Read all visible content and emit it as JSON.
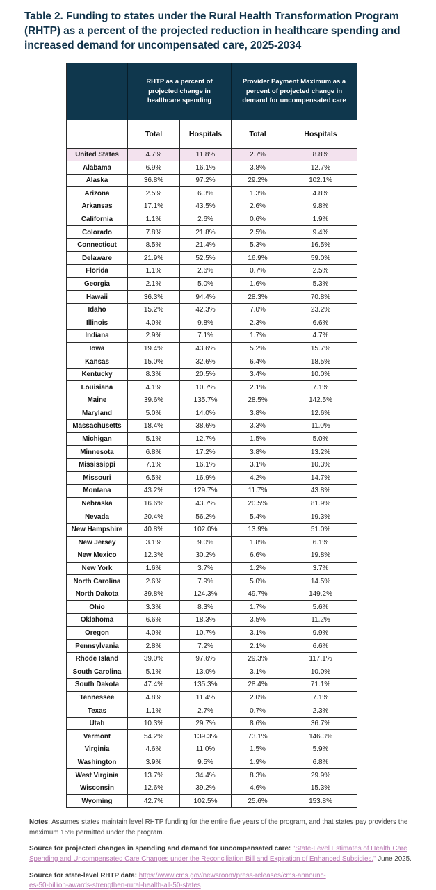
{
  "page_title": "Table 2. Funding to states under the Rural Health Transformation Program (RHTP) as a percent of the projected reduction in healthcare spending and increased demand for uncompensated care, 2025-2034",
  "colors": {
    "header_navy": "#0f374d",
    "highlight_pink": "#f3e2ee",
    "link_purple": "#b778b1",
    "title_navy": "#12344b",
    "border": "#2b2b2b"
  },
  "chart_data": {
    "type": "table",
    "title": "Table 2. Funding to states under the Rural Health Transformation Program (RHTP) as a percent of the projected reduction in healthcare spending and increased demand for uncompensated care, 2025-2034",
    "column_groups": [
      "RHTP as a percent of projected change in healthcare spending",
      "Provider Payment Maximum as a percent of projected change in demand for uncompensated care"
    ],
    "sub_headers": [
      "Total",
      "Hospitals",
      "Total",
      "Hospitals"
    ],
    "rows": [
      {
        "label": "United States",
        "values": [
          "4.7%",
          "11.8%",
          "2.7%",
          "8.8%"
        ],
        "highlight": true
      },
      {
        "label": "Alabama",
        "values": [
          "6.9%",
          "16.1%",
          "3.8%",
          "12.7%"
        ]
      },
      {
        "label": "Alaska",
        "values": [
          "36.8%",
          "97.2%",
          "29.2%",
          "102.1%"
        ]
      },
      {
        "label": "Arizona",
        "values": [
          "2.5%",
          "6.3%",
          "1.3%",
          "4.8%"
        ]
      },
      {
        "label": "Arkansas",
        "values": [
          "17.1%",
          "43.5%",
          "2.6%",
          "9.8%"
        ]
      },
      {
        "label": "California",
        "values": [
          "1.1%",
          "2.6%",
          "0.6%",
          "1.9%"
        ]
      },
      {
        "label": "Colorado",
        "values": [
          "7.8%",
          "21.8%",
          "2.5%",
          "9.4%"
        ]
      },
      {
        "label": "Connecticut",
        "values": [
          "8.5%",
          "21.4%",
          "5.3%",
          "16.5%"
        ]
      },
      {
        "label": "Delaware",
        "values": [
          "21.9%",
          "52.5%",
          "16.9%",
          "59.0%"
        ]
      },
      {
        "label": "Florida",
        "values": [
          "1.1%",
          "2.6%",
          "0.7%",
          "2.5%"
        ]
      },
      {
        "label": "Georgia",
        "values": [
          "2.1%",
          "5.0%",
          "1.6%",
          "5.3%"
        ]
      },
      {
        "label": "Hawaii",
        "values": [
          "36.3%",
          "94.4%",
          "28.3%",
          "70.8%"
        ]
      },
      {
        "label": "Idaho",
        "values": [
          "15.2%",
          "42.3%",
          "7.0%",
          "23.2%"
        ]
      },
      {
        "label": "Illinois",
        "values": [
          "4.0%",
          "9.8%",
          "2.3%",
          "6.6%"
        ]
      },
      {
        "label": "Indiana",
        "values": [
          "2.9%",
          "7.1%",
          "1.7%",
          "4.7%"
        ]
      },
      {
        "label": "Iowa",
        "values": [
          "19.4%",
          "43.6%",
          "5.2%",
          "15.7%"
        ]
      },
      {
        "label": "Kansas",
        "values": [
          "15.0%",
          "32.6%",
          "6.4%",
          "18.5%"
        ]
      },
      {
        "label": "Kentucky",
        "values": [
          "8.3%",
          "20.5%",
          "3.4%",
          "10.0%"
        ]
      },
      {
        "label": "Louisiana",
        "values": [
          "4.1%",
          "10.7%",
          "2.1%",
          "7.1%"
        ]
      },
      {
        "label": "Maine",
        "values": [
          "39.6%",
          "135.7%",
          "28.5%",
          "142.5%"
        ]
      },
      {
        "label": "Maryland",
        "values": [
          "5.0%",
          "14.0%",
          "3.8%",
          "12.6%"
        ]
      },
      {
        "label": "Massachusetts",
        "values": [
          "18.4%",
          "38.6%",
          "3.3%",
          "11.0%"
        ]
      },
      {
        "label": "Michigan",
        "values": [
          "5.1%",
          "12.7%",
          "1.5%",
          "5.0%"
        ]
      },
      {
        "label": "Minnesota",
        "values": [
          "6.8%",
          "17.2%",
          "3.8%",
          "13.2%"
        ]
      },
      {
        "label": "Mississippi",
        "values": [
          "7.1%",
          "16.1%",
          "3.1%",
          "10.3%"
        ]
      },
      {
        "label": "Missouri",
        "values": [
          "6.5%",
          "16.9%",
          "4.2%",
          "14.7%"
        ]
      },
      {
        "label": "Montana",
        "values": [
          "43.2%",
          "129.7%",
          "11.7%",
          "43.8%"
        ]
      },
      {
        "label": "Nebraska",
        "values": [
          "16.6%",
          "43.7%",
          "20.5%",
          "81.9%"
        ]
      },
      {
        "label": "Nevada",
        "values": [
          "20.4%",
          "56.2%",
          "5.4%",
          "19.3%"
        ]
      },
      {
        "label": "New Hampshire",
        "values": [
          "40.8%",
          "102.0%",
          "13.9%",
          "51.0%"
        ]
      },
      {
        "label": "New Jersey",
        "values": [
          "3.1%",
          "9.0%",
          "1.8%",
          "6.1%"
        ]
      },
      {
        "label": "New Mexico",
        "values": [
          "12.3%",
          "30.2%",
          "6.6%",
          "19.8%"
        ]
      },
      {
        "label": "New York",
        "values": [
          "1.6%",
          "3.7%",
          "1.2%",
          "3.7%"
        ]
      },
      {
        "label": "North Carolina",
        "values": [
          "2.6%",
          "7.9%",
          "5.0%",
          "14.5%"
        ]
      },
      {
        "label": "North Dakota",
        "values": [
          "39.8%",
          "124.3%",
          "49.7%",
          "149.2%"
        ]
      },
      {
        "label": "Ohio",
        "values": [
          "3.3%",
          "8.3%",
          "1.7%",
          "5.6%"
        ]
      },
      {
        "label": "Oklahoma",
        "values": [
          "6.6%",
          "18.3%",
          "3.5%",
          "11.2%"
        ]
      },
      {
        "label": "Oregon",
        "values": [
          "4.0%",
          "10.7%",
          "3.1%",
          "9.9%"
        ]
      },
      {
        "label": "Pennsylvania",
        "values": [
          "2.8%",
          "7.2%",
          "2.1%",
          "6.6%"
        ]
      },
      {
        "label": "Rhode Island",
        "values": [
          "39.0%",
          "97.6%",
          "29.3%",
          "117.1%"
        ]
      },
      {
        "label": "South Carolina",
        "values": [
          "5.1%",
          "13.0%",
          "3.1%",
          "10.0%"
        ]
      },
      {
        "label": "South Dakota",
        "values": [
          "47.4%",
          "135.3%",
          "28.4%",
          "71.1%"
        ]
      },
      {
        "label": "Tennessee",
        "values": [
          "4.8%",
          "11.4%",
          "2.0%",
          "7.1%"
        ]
      },
      {
        "label": "Texas",
        "values": [
          "1.1%",
          "2.7%",
          "0.7%",
          "2.3%"
        ]
      },
      {
        "label": "Utah",
        "values": [
          "10.3%",
          "29.7%",
          "8.6%",
          "36.7%"
        ]
      },
      {
        "label": "Vermont",
        "values": [
          "54.2%",
          "139.3%",
          "73.1%",
          "146.3%"
        ]
      },
      {
        "label": "Virginia",
        "values": [
          "4.6%",
          "11.0%",
          "1.5%",
          "5.9%"
        ]
      },
      {
        "label": "Washington",
        "values": [
          "3.9%",
          "9.5%",
          "1.9%",
          "6.8%"
        ]
      },
      {
        "label": "West Virginia",
        "values": [
          "13.7%",
          "34.4%",
          "8.3%",
          "29.9%"
        ]
      },
      {
        "label": "Wisconsin",
        "values": [
          "12.6%",
          "39.2%",
          "4.6%",
          "15.3%"
        ]
      },
      {
        "label": "Wyoming",
        "values": [
          "42.7%",
          "102.5%",
          "25.6%",
          "153.8%"
        ]
      }
    ]
  },
  "notes": {
    "notes_label": "Notes",
    "notes_text": ": Assumes states maintain level RHTP funding for the entire five years of the program, and that states pay providers the maximum 15% permitted under the program.",
    "source1_label": "Source for projected changes in spending and demand for uncompensated care:",
    "source1_open_quote": "\"",
    "source1_link_text": "State-Level Estimates of Health Care Spending and Uncompensated Care Changes under the Reconciliation Bill and Expiration of Enhanced Subsidies,",
    "source1_close_quote": "\"",
    "source1_suffix": " June 2025.",
    "source2_label": "Source for state-level RHTP data:",
    "source2_url_line1": "https://www.cms.gov/newsroom/press-releases/cms-announc-",
    "source2_url_line2": "es-50-billion-awards-strengthen-rural-health-all-50-states"
  }
}
